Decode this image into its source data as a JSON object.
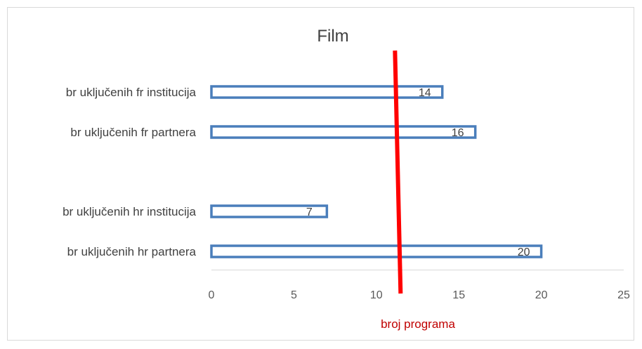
{
  "chart_data": {
    "type": "bar",
    "orientation": "horizontal",
    "title": "Film",
    "categories": [
      "br uključenih fr institucija",
      "br uključenih fr partnera",
      "",
      "br uključenih hr institucija",
      "br uključenih hr partnera"
    ],
    "values": [
      14,
      16,
      null,
      7,
      20
    ],
    "data_labels": [
      "14",
      "16",
      "",
      "7",
      "20"
    ],
    "xlim": [
      0,
      25
    ],
    "x_ticks": [
      0,
      5,
      10,
      15,
      20,
      25
    ],
    "x_tick_labels": [
      "0",
      "5",
      "10",
      "15",
      "20",
      "25"
    ],
    "xlabel": "",
    "ylabel": "",
    "grid": false,
    "legend": "none",
    "colors": {
      "bar_outline": "#4a7ebb",
      "bar_fill": "#ffffff",
      "annotation": "#ff0000",
      "annotation_text": "#c00000"
    },
    "annotations": [
      {
        "type": "vertical-line",
        "x": 11.3,
        "label": "broj programa"
      }
    ]
  }
}
